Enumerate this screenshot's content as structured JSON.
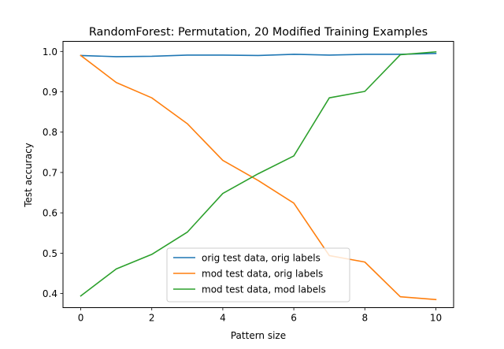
{
  "chart_data": {
    "type": "line",
    "title": "RandomForest: Permutation, 20 Modified Training Examples",
    "xlabel": "Pattern size",
    "ylabel": "Test accuracy",
    "x": [
      0,
      1,
      2,
      3,
      4,
      5,
      6,
      7,
      8,
      9,
      10
    ],
    "xlim": [
      -0.5,
      10.5
    ],
    "ylim": [
      0.365,
      1.025
    ],
    "xticks": [
      0,
      2,
      4,
      6,
      8,
      10
    ],
    "xtick_labels": [
      "0",
      "2",
      "4",
      "6",
      "8",
      "10"
    ],
    "yticks": [
      0.4,
      0.5,
      0.6,
      0.7,
      0.8,
      0.9,
      1.0
    ],
    "ytick_labels": [
      "0.4",
      "0.5",
      "0.6",
      "0.7",
      "0.8",
      "0.9",
      "1.0"
    ],
    "grid": false,
    "legend_position": "lower center",
    "series": [
      {
        "name": "orig test data, orig labels",
        "color": "#1f77b4",
        "values": [
          0.99,
          0.987,
          0.988,
          0.991,
          0.991,
          0.99,
          0.993,
          0.991,
          0.993,
          0.993,
          0.995
        ]
      },
      {
        "name": "mod test data, orig labels",
        "color": "#ff7f0e",
        "values": [
          0.99,
          0.923,
          0.885,
          0.821,
          0.73,
          0.68,
          0.624,
          0.494,
          0.478,
          0.392,
          0.385
        ]
      },
      {
        "name": "mod test data, mod labels",
        "color": "#2ca02c",
        "values": [
          0.394,
          0.461,
          0.497,
          0.552,
          0.648,
          0.697,
          0.741,
          0.885,
          0.901,
          0.992,
          0.999
        ]
      }
    ]
  }
}
